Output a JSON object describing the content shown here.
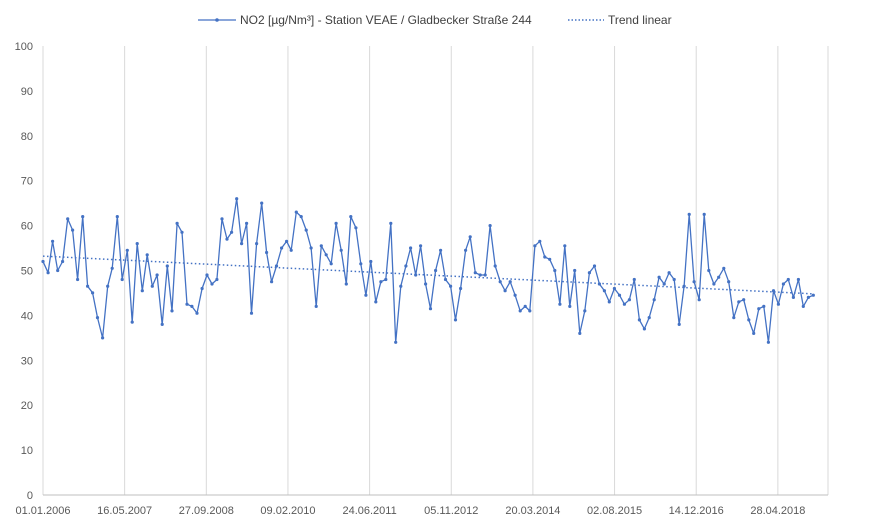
{
  "chart_data": {
    "type": "line",
    "title": "",
    "xlabel": "",
    "ylabel": "",
    "ylim": [
      0,
      100
    ],
    "y_ticks": [
      0,
      10,
      20,
      30,
      40,
      50,
      60,
      70,
      80,
      90,
      100
    ],
    "x_ticks": [
      "01.01.2006",
      "16.05.2007",
      "27.09.2008",
      "09.02.2010",
      "24.06.2011",
      "05.11.2012",
      "20.03.2014",
      "02.08.2015",
      "14.12.2016",
      "28.04.2018"
    ],
    "xlim": [
      "2006-01-01",
      "2019-03-01"
    ],
    "grid": "vertical",
    "legend_position": "top",
    "series": [
      {
        "name": "NO2 [µg/Nm³] - Station VEAE / Gladbecker Straße 244",
        "color": "#4472C4",
        "marker": "dot",
        "x": [
          "2006-01-01",
          "2006-02-01",
          "2006-03-01",
          "2006-04-01",
          "2006-05-01",
          "2006-06-01",
          "2006-07-01",
          "2006-08-01",
          "2006-09-01",
          "2006-10-01",
          "2006-11-01",
          "2006-12-01",
          "2007-01-01",
          "2007-02-01",
          "2007-03-01",
          "2007-04-01",
          "2007-05-01",
          "2007-06-01",
          "2007-07-01",
          "2007-08-01",
          "2007-09-01",
          "2007-10-01",
          "2007-11-01",
          "2007-12-01",
          "2008-01-01",
          "2008-02-01",
          "2008-03-01",
          "2008-04-01",
          "2008-05-01",
          "2008-06-01",
          "2008-07-01",
          "2008-08-01",
          "2008-09-01",
          "2008-10-01",
          "2008-11-01",
          "2008-12-01",
          "2009-01-01",
          "2009-02-01",
          "2009-03-01",
          "2009-04-01",
          "2009-05-01",
          "2009-06-01",
          "2009-07-01",
          "2009-08-01",
          "2009-09-01",
          "2009-10-01",
          "2009-11-01",
          "2009-12-01",
          "2010-01-01",
          "2010-02-01",
          "2010-03-01",
          "2010-04-01",
          "2010-05-01",
          "2010-06-01",
          "2010-07-01",
          "2010-08-01",
          "2010-09-01",
          "2010-10-01",
          "2010-11-01",
          "2010-12-01",
          "2011-01-01",
          "2011-02-01",
          "2011-03-01",
          "2011-04-01",
          "2011-05-01",
          "2011-06-01",
          "2011-07-01",
          "2011-08-01",
          "2011-09-01",
          "2011-10-01",
          "2011-11-01",
          "2011-12-01",
          "2012-01-01",
          "2012-02-01",
          "2012-03-01",
          "2012-04-01",
          "2012-05-01",
          "2012-06-01",
          "2012-07-01",
          "2012-08-01",
          "2012-09-01",
          "2012-10-01",
          "2012-11-01",
          "2012-12-01",
          "2013-01-01",
          "2013-02-01",
          "2013-03-01",
          "2013-04-01",
          "2013-05-01",
          "2013-06-01",
          "2013-07-01",
          "2013-08-01",
          "2013-09-01",
          "2013-10-01",
          "2013-11-01",
          "2013-12-01",
          "2014-01-01",
          "2014-02-01",
          "2014-03-01",
          "2014-04-01",
          "2014-05-01",
          "2014-06-01",
          "2014-07-01",
          "2014-08-01",
          "2014-09-01",
          "2014-10-01",
          "2014-11-01",
          "2014-12-01",
          "2015-01-01",
          "2015-02-01",
          "2015-03-01",
          "2015-04-01",
          "2015-05-01",
          "2015-06-01",
          "2015-07-01",
          "2015-08-01",
          "2015-09-01",
          "2015-10-01",
          "2015-11-01",
          "2015-12-01",
          "2016-01-01",
          "2016-02-01",
          "2016-03-01",
          "2016-04-01",
          "2016-05-01",
          "2016-06-01",
          "2016-07-01",
          "2016-08-01",
          "2016-09-01",
          "2016-10-01",
          "2016-11-01",
          "2016-12-01",
          "2017-01-01",
          "2017-02-01",
          "2017-03-01",
          "2017-04-01",
          "2017-05-01",
          "2017-06-01",
          "2017-07-01",
          "2017-08-01",
          "2017-09-01",
          "2017-10-01",
          "2017-11-01",
          "2017-12-01",
          "2018-01-01",
          "2018-02-01",
          "2018-03-01",
          "2018-04-01",
          "2018-05-01",
          "2018-06-01",
          "2018-07-01",
          "2018-08-01",
          "2018-09-01",
          "2018-10-01",
          "2018-11-01",
          "2018-12-01"
        ],
        "values": [
          52.0,
          49.5,
          56.5,
          50.0,
          52.0,
          61.5,
          59.0,
          48.0,
          62.0,
          46.5,
          45.0,
          39.5,
          35.0,
          46.5,
          50.5,
          62.0,
          48.0,
          54.5,
          38.5,
          56.0,
          45.5,
          53.5,
          46.5,
          49.0,
          38.0,
          51.0,
          41.0,
          60.5,
          58.5,
          42.5,
          42.0,
          40.5,
          46.0,
          49.0,
          47.0,
          48.0,
          61.5,
          57.0,
          58.5,
          66.0,
          56.0,
          60.5,
          40.5,
          56.0,
          65.0,
          54.0,
          47.5,
          51.0,
          55.0,
          56.5,
          54.5,
          63.0,
          62.0,
          59.0,
          55.0,
          42.0,
          55.5,
          53.5,
          51.5,
          60.5,
          54.5,
          47.0,
          62.0,
          59.5,
          51.5,
          44.5,
          52.0,
          43.0,
          47.5,
          48.0,
          60.5,
          34.0,
          46.5,
          51.0,
          55.0,
          49.0,
          55.5,
          47.0,
          41.5,
          50.0,
          54.5,
          48.0,
          46.5,
          39.0,
          46.0,
          54.5,
          57.5,
          49.5,
          49.0,
          49.0,
          60.0,
          51.0,
          47.5,
          45.5,
          47.5,
          44.5,
          41.0,
          42.0,
          41.0,
          55.5,
          56.5,
          53.0,
          52.5,
          50.0,
          42.5,
          55.5,
          42.0,
          50.0,
          36.0,
          41.0,
          49.5,
          51.0,
          47.0,
          45.5,
          43.0,
          46.0,
          44.5,
          42.5,
          43.5,
          48.0,
          39.0,
          37.0,
          39.5,
          43.5,
          48.5,
          47.0,
          49.5,
          48.0,
          38.0,
          46.5,
          62.5,
          47.5,
          43.5,
          62.5,
          50.0,
          47.0,
          48.5,
          50.5,
          47.5,
          39.5,
          43.0,
          43.5,
          39.0,
          36.0,
          41.5,
          42.0,
          34.0,
          45.5,
          42.5,
          47.0,
          48.0,
          44.0,
          48.0,
          42.0,
          44.0,
          44.5
        ]
      },
      {
        "name": "Trend linear",
        "color": "#4472C4",
        "style": "dotted",
        "x": [
          "2006-01-01",
          "2018-12-01"
        ],
        "values": [
          53.2,
          44.8
        ]
      }
    ]
  }
}
